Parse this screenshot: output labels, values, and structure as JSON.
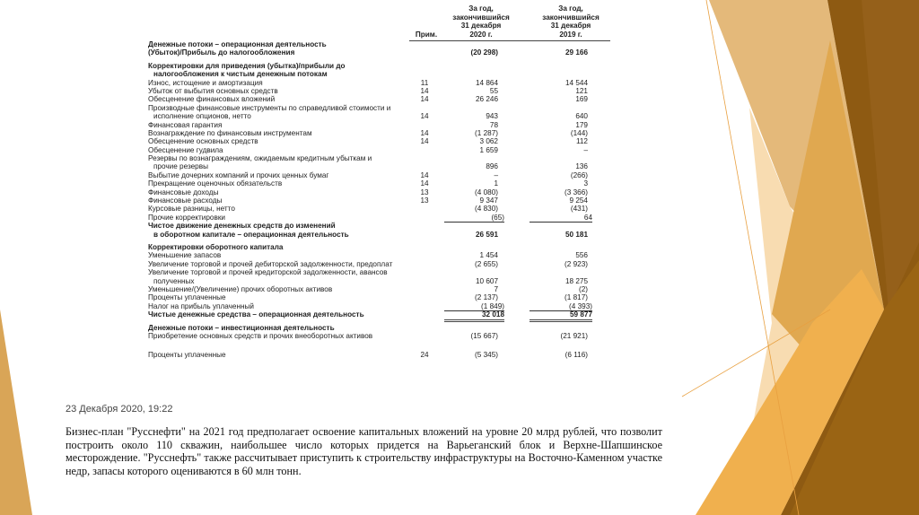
{
  "theme": {
    "accent_light": "#e4b97a",
    "accent_mid": "#e0a850",
    "accent_orange": "#f0b04e",
    "accent_dark": "#8e5a12",
    "accent_pale": "#f7d8a8"
  },
  "statement": {
    "header": {
      "note": "Прим.",
      "col2020": [
        "За год,",
        "закончившийся",
        "31 декабря",
        "2020 г."
      ],
      "col2019": [
        "За год,",
        "закончившийся",
        "31 декабря",
        "2019 г."
      ]
    },
    "rows": [
      {
        "label": "Денежные потоки – операционная деятельность",
        "note": "",
        "v2020": "",
        "v2019": "",
        "style": "bold"
      },
      {
        "label": "(Убыток)/Прибыль до налогообложения",
        "note": "",
        "v2020": "(20 298)",
        "v2019": "29 166",
        "style": "bold"
      },
      {
        "label": "Корректировки для приведения (убытка)/прибыли до",
        "note": "",
        "v2020": "",
        "v2019": "",
        "style": "bold gap"
      },
      {
        "label": "налогообложения к чистым денежным потокам",
        "note": "",
        "v2020": "",
        "v2019": "",
        "style": "bold indent"
      },
      {
        "label": "Износ, истощение и амортизация",
        "note": "11",
        "v2020": "14 864",
        "v2019": "14 544",
        "style": ""
      },
      {
        "label": "Убыток от выбытия основных средств",
        "note": "14",
        "v2020": "55",
        "v2019": "121",
        "style": ""
      },
      {
        "label": "Обесценение финансовых вложений",
        "note": "14",
        "v2020": "26 246",
        "v2019": "169",
        "style": ""
      },
      {
        "label": "Производные финансовые инструменты по справедливой стоимости и",
        "note": "",
        "v2020": "",
        "v2019": "",
        "style": ""
      },
      {
        "label": "исполнение опционов, нетто",
        "note": "14",
        "v2020": "943",
        "v2019": "640",
        "style": "indent"
      },
      {
        "label": "Финансовая гарантия",
        "note": "",
        "v2020": "78",
        "v2019": "179",
        "style": ""
      },
      {
        "label": "Вознаграждение по финансовым инструментам",
        "note": "14",
        "v2020": "(1 287)",
        "v2019": "(144)",
        "style": ""
      },
      {
        "label": "Обесценение основных средств",
        "note": "14",
        "v2020": "3 062",
        "v2019": "112",
        "style": ""
      },
      {
        "label": "Обесценение гудвила",
        "note": "",
        "v2020": "1 659",
        "v2019": "–",
        "style": ""
      },
      {
        "label": "Резервы по вознаграждениям, ожидаемым кредитным убыткам и",
        "note": "",
        "v2020": "",
        "v2019": "",
        "style": ""
      },
      {
        "label": "прочие резервы",
        "note": "",
        "v2020": "896",
        "v2019": "136",
        "style": "indent"
      },
      {
        "label": "Выбытие дочерних компаний и прочих ценных бумаг",
        "note": "14",
        "v2020": "–",
        "v2019": "(266)",
        "style": ""
      },
      {
        "label": "Прекращение оценочных обязательств",
        "note": "14",
        "v2020": "1",
        "v2019": "3",
        "style": ""
      },
      {
        "label": "Финансовые доходы",
        "note": "13",
        "v2020": "(4 080)",
        "v2019": "(3 366)",
        "style": ""
      },
      {
        "label": "Финансовые расходы",
        "note": "13",
        "v2020": "9 347",
        "v2019": "9 254",
        "style": ""
      },
      {
        "label": "Курсовые разницы, нетто",
        "note": "",
        "v2020": "(4 830)",
        "v2019": "(431)",
        "style": ""
      },
      {
        "label": "Прочие корректировки",
        "note": "",
        "v2020": "(65)",
        "v2019": "64",
        "style": "under"
      },
      {
        "label": "Чистое движение денежных средств до изменений",
        "note": "",
        "v2020": "",
        "v2019": "",
        "style": "bold"
      },
      {
        "label": "в оборотном капитале – операционная деятельность",
        "note": "",
        "v2020": "26 591",
        "v2019": "50 181",
        "style": "bold indent"
      },
      {
        "label": "Корректировки оборотного капитала",
        "note": "",
        "v2020": "",
        "v2019": "",
        "style": "bold gap"
      },
      {
        "label": "Уменьшение запасов",
        "note": "",
        "v2020": "1 454",
        "v2019": "556",
        "style": ""
      },
      {
        "label": "Увеличение торговой и прочей дебиторской задолженности, предоплат",
        "note": "",
        "v2020": "(2 655)",
        "v2019": "(2 923)",
        "style": ""
      },
      {
        "label": "Увеличение торговой и прочей кредиторской задолженности, авансов",
        "note": "",
        "v2020": "",
        "v2019": "",
        "style": ""
      },
      {
        "label": "полученных",
        "note": "",
        "v2020": "10 607",
        "v2019": "18 275",
        "style": "indent"
      },
      {
        "label": "Уменьшение/(Увеличение) прочих оборотных активов",
        "note": "",
        "v2020": "7",
        "v2019": "(2)",
        "style": ""
      },
      {
        "label": "Проценты уплаченные",
        "note": "",
        "v2020": "(2 137)",
        "v2019": "(1 817)",
        "style": ""
      },
      {
        "label": "Налог на прибыль уплаченный",
        "note": "",
        "v2020": "(1 849)",
        "v2019": "(4 393)",
        "style": "under"
      },
      {
        "label": "Чистые денежные средства – операционная деятельность",
        "note": "",
        "v2020": "32 018",
        "v2019": "59 877",
        "style": "bold total"
      },
      {
        "label": "Денежные потоки – инвестиционная деятельность",
        "note": "",
        "v2020": "",
        "v2019": "",
        "style": "bold gap"
      },
      {
        "label": "Приобретение основных средств и прочих внеоборотных активов",
        "note": "",
        "v2020": "(15 667)",
        "v2019": "(21 921)",
        "style": ""
      },
      {
        "label": "Проценты уплаченные",
        "note": "24",
        "v2020": "(5 345)",
        "v2019": "(6 116)",
        "style": "biggap"
      }
    ]
  },
  "news": {
    "date": "23 Декабря 2020, 19:22",
    "text": "Бизнес-план \"Русснефти\" на 2021 год предполагает освоение капитальных вложений на уровне 20 млрд рублей, что позволит построить около 110 скважин, наибольшее число которых придется на Варьеганский блок и Верхне-Шапшинское месторождение. \"Русснефть\" также рассчитывает приступить к строительству инфраструктуры на Восточно-Каменном участке недр, запасы которого оцениваются в 60 млн тонн."
  }
}
